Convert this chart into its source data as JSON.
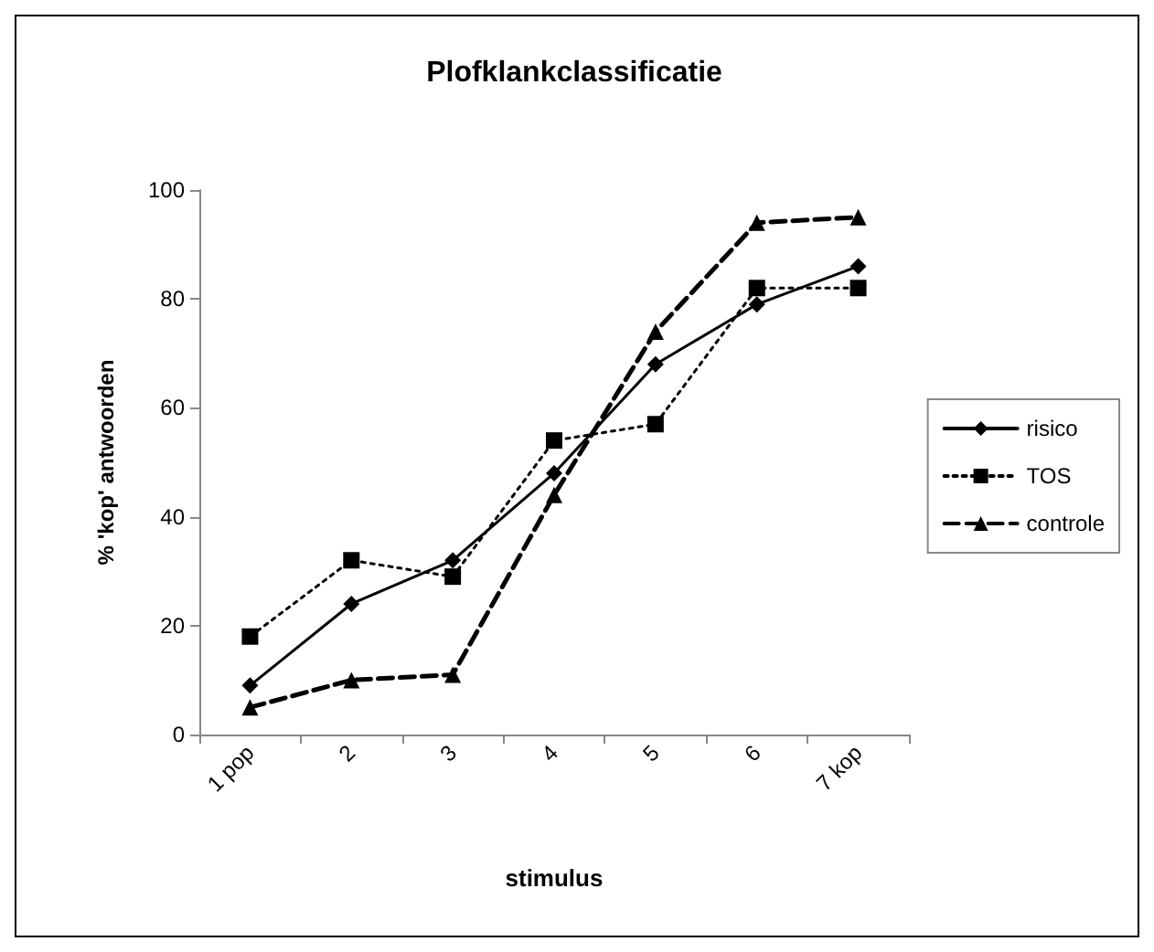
{
  "chart_data": {
    "type": "line",
    "title": "Plofklankclassificatie",
    "xlabel": "stimulus",
    "ylabel": "% 'kop' antwoorden",
    "categories": [
      "1 pop",
      "2",
      "3",
      "4",
      "5",
      "6",
      "7 kop"
    ],
    "ylim": [
      0,
      100
    ],
    "yticks": [
      0,
      20,
      40,
      60,
      80,
      100
    ],
    "grid": false,
    "legend": "right",
    "series": [
      {
        "name": "risico",
        "color": "#000000",
        "marker": "diamond",
        "line_style": "solid",
        "values": [
          9,
          24,
          32,
          48,
          68,
          79,
          86
        ]
      },
      {
        "name": "TOS",
        "color": "#000000",
        "marker": "square",
        "line_style": "dotted",
        "values": [
          18,
          32,
          29,
          54,
          57,
          82,
          82
        ]
      },
      {
        "name": "controle",
        "color": "#000000",
        "marker": "triangle",
        "line_style": "dashed",
        "values": [
          5,
          10,
          11,
          44,
          74,
          94,
          95
        ]
      }
    ]
  }
}
